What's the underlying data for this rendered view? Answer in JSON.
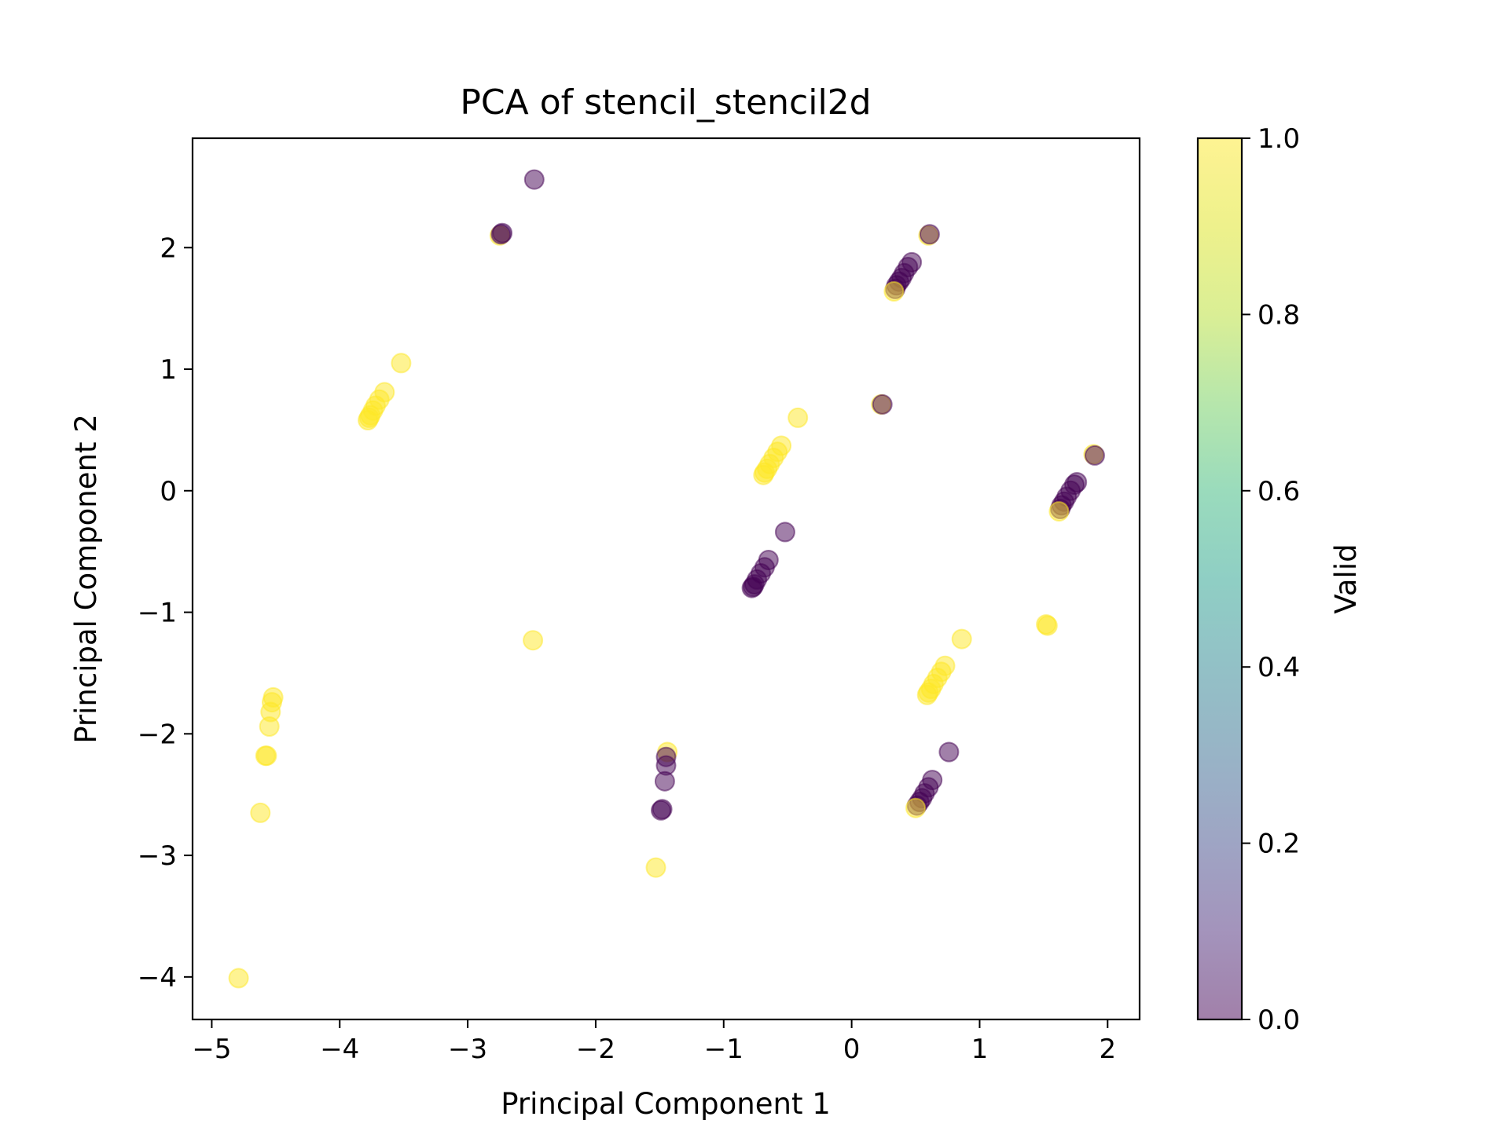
{
  "chart_data": {
    "type": "scatter",
    "title": "PCA of stencil_stencil2d",
    "xlabel": "Principal Component 1",
    "ylabel": "Principal Component 2",
    "xlim": [
      -5.15,
      2.25
    ],
    "ylim": [
      -4.35,
      2.9
    ],
    "xticks": [
      -5,
      -4,
      -3,
      -2,
      -1,
      0,
      1,
      2
    ],
    "yticks": [
      -4,
      -3,
      -2,
      -1,
      0,
      1,
      2
    ],
    "grid": false,
    "point_opacity": 0.5,
    "colorbar": {
      "label": "Valid",
      "range": [
        0.0,
        1.0
      ],
      "ticks": [
        0.0,
        0.2,
        0.4,
        0.6,
        0.8,
        1.0
      ],
      "colormap": "viridis"
    },
    "colors": {
      "invalid": "#440154",
      "valid": "#fde725",
      "mixed": "#7a4a3f"
    },
    "points": [
      {
        "x": -2.48,
        "y": 2.56,
        "v": 0
      },
      {
        "x": -2.75,
        "y": 2.1,
        "v": 1
      },
      {
        "x": -2.74,
        "y": 2.11,
        "v": 0
      },
      {
        "x": -2.73,
        "y": 2.12,
        "v": 0
      },
      {
        "x": 0.6,
        "y": 2.1,
        "v": 1
      },
      {
        "x": 0.61,
        "y": 2.11,
        "v": 0
      },
      {
        "x": 0.47,
        "y": 1.88,
        "v": 0
      },
      {
        "x": 0.44,
        "y": 1.84,
        "v": 0
      },
      {
        "x": 0.41,
        "y": 1.79,
        "v": 0
      },
      {
        "x": 0.39,
        "y": 1.75,
        "v": 0
      },
      {
        "x": 0.37,
        "y": 1.72,
        "v": 0
      },
      {
        "x": 0.35,
        "y": 1.69,
        "v": 0
      },
      {
        "x": 0.34,
        "y": 1.66,
        "v": 0
      },
      {
        "x": 0.33,
        "y": 1.64,
        "v": 1
      },
      {
        "x": 0.23,
        "y": 0.71,
        "v": 1
      },
      {
        "x": 0.24,
        "y": 0.71,
        "v": 0
      },
      {
        "x": 1.89,
        "y": 0.3,
        "v": 1
      },
      {
        "x": 1.9,
        "y": 0.29,
        "v": 0
      },
      {
        "x": 1.76,
        "y": 0.07,
        "v": 0
      },
      {
        "x": 1.74,
        "y": 0.05,
        "v": 0
      },
      {
        "x": 1.71,
        "y": 0.0,
        "v": 0
      },
      {
        "x": 1.68,
        "y": -0.05,
        "v": 0
      },
      {
        "x": 1.66,
        "y": -0.09,
        "v": 0
      },
      {
        "x": 1.64,
        "y": -0.12,
        "v": 0
      },
      {
        "x": 1.63,
        "y": -0.15,
        "v": 0
      },
      {
        "x": 1.62,
        "y": -0.17,
        "v": 1
      },
      {
        "x": -3.52,
        "y": 1.05,
        "v": 1
      },
      {
        "x": -3.65,
        "y": 0.81,
        "v": 1
      },
      {
        "x": -3.69,
        "y": 0.75,
        "v": 1
      },
      {
        "x": -3.72,
        "y": 0.7,
        "v": 1
      },
      {
        "x": -3.74,
        "y": 0.66,
        "v": 1
      },
      {
        "x": -3.76,
        "y": 0.62,
        "v": 1
      },
      {
        "x": -3.77,
        "y": 0.6,
        "v": 1
      },
      {
        "x": -3.78,
        "y": 0.58,
        "v": 1
      },
      {
        "x": -0.42,
        "y": 0.6,
        "v": 1
      },
      {
        "x": -0.55,
        "y": 0.37,
        "v": 1
      },
      {
        "x": -0.58,
        "y": 0.32,
        "v": 1
      },
      {
        "x": -0.61,
        "y": 0.27,
        "v": 1
      },
      {
        "x": -0.64,
        "y": 0.22,
        "v": 1
      },
      {
        "x": -0.66,
        "y": 0.18,
        "v": 1
      },
      {
        "x": -0.68,
        "y": 0.15,
        "v": 1
      },
      {
        "x": -0.69,
        "y": 0.13,
        "v": 1
      },
      {
        "x": -0.52,
        "y": -0.34,
        "v": 0
      },
      {
        "x": -0.65,
        "y": -0.57,
        "v": 0
      },
      {
        "x": -0.68,
        "y": -0.63,
        "v": 0
      },
      {
        "x": -0.71,
        "y": -0.68,
        "v": 0
      },
      {
        "x": -0.74,
        "y": -0.73,
        "v": 0
      },
      {
        "x": -0.76,
        "y": -0.77,
        "v": 0
      },
      {
        "x": -0.77,
        "y": -0.79,
        "v": 0
      },
      {
        "x": -0.78,
        "y": -0.8,
        "v": 0
      },
      {
        "x": -2.49,
        "y": -1.23,
        "v": 1
      },
      {
        "x": 1.52,
        "y": -1.1,
        "v": 1
      },
      {
        "x": 1.53,
        "y": -1.11,
        "v": 1
      },
      {
        "x": 0.86,
        "y": -1.22,
        "v": 1
      },
      {
        "x": 0.73,
        "y": -1.44,
        "v": 1
      },
      {
        "x": 0.7,
        "y": -1.49,
        "v": 1
      },
      {
        "x": 0.67,
        "y": -1.54,
        "v": 1
      },
      {
        "x": 0.64,
        "y": -1.59,
        "v": 1
      },
      {
        "x": 0.62,
        "y": -1.63,
        "v": 1
      },
      {
        "x": 0.6,
        "y": -1.66,
        "v": 1
      },
      {
        "x": 0.59,
        "y": -1.68,
        "v": 1
      },
      {
        "x": 0.76,
        "y": -2.15,
        "v": 0
      },
      {
        "x": 0.63,
        "y": -2.38,
        "v": 0
      },
      {
        "x": 0.6,
        "y": -2.44,
        "v": 0
      },
      {
        "x": 0.57,
        "y": -2.49,
        "v": 0
      },
      {
        "x": 0.55,
        "y": -2.53,
        "v": 0
      },
      {
        "x": 0.53,
        "y": -2.56,
        "v": 0
      },
      {
        "x": 0.51,
        "y": -2.59,
        "v": 0
      },
      {
        "x": 0.5,
        "y": -2.61,
        "v": 1
      },
      {
        "x": -4.52,
        "y": -1.7,
        "v": 1
      },
      {
        "x": -4.53,
        "y": -1.74,
        "v": 1
      },
      {
        "x": -4.54,
        "y": -1.82,
        "v": 1
      },
      {
        "x": -4.55,
        "y": -1.94,
        "v": 1
      },
      {
        "x": -4.57,
        "y": -2.18,
        "v": 1
      },
      {
        "x": -4.58,
        "y": -2.18,
        "v": 1
      },
      {
        "x": -4.62,
        "y": -2.65,
        "v": 1
      },
      {
        "x": -4.79,
        "y": -4.01,
        "v": 1
      },
      {
        "x": -1.44,
        "y": -2.15,
        "v": 1
      },
      {
        "x": -1.45,
        "y": -2.19,
        "v": 0
      },
      {
        "x": -1.45,
        "y": -2.26,
        "v": 0
      },
      {
        "x": -1.46,
        "y": -2.39,
        "v": 0
      },
      {
        "x": -1.48,
        "y": -2.62,
        "v": 0
      },
      {
        "x": -1.49,
        "y": -2.63,
        "v": 0
      },
      {
        "x": -1.53,
        "y": -3.1,
        "v": 1
      }
    ]
  }
}
